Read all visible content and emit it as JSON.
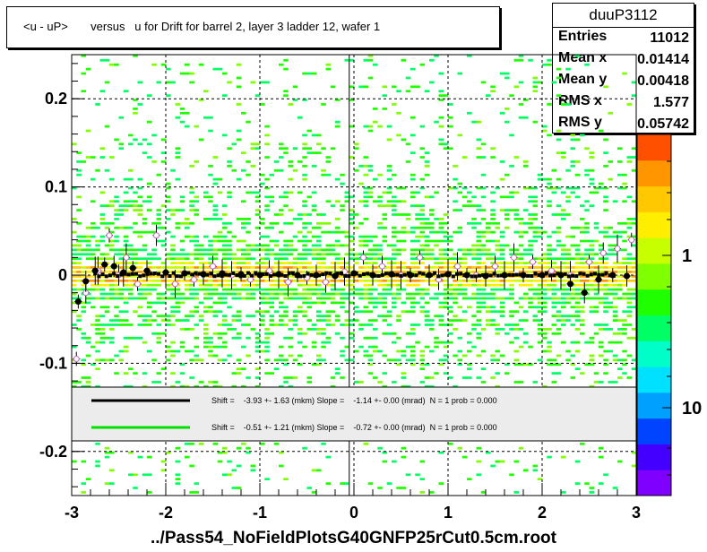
{
  "title": "<u - uP>       versus   u for Drift for barrel 2, layer 3 ladder 12, wafer 1",
  "stats": {
    "name": "duuP3112",
    "rows": [
      {
        "key": "Entries",
        "value": "11012"
      },
      {
        "key": "Mean x",
        "value": "0.01414"
      },
      {
        "key": "Mean y",
        "value": "0.00418"
      },
      {
        "key": "RMS x",
        "value": "1.577"
      },
      {
        "key": "RMS y",
        "value": "0.05742"
      }
    ]
  },
  "file_label": "../Pass54_NoFieldPlotsG40GNFP25rCut0.5cm.root",
  "chart_data": {
    "type": "heatmap",
    "x_ticks": [
      "-3",
      "-2",
      "-1",
      "0",
      "1",
      "2",
      "3"
    ],
    "y_ticks": [
      "-0.2",
      "-0.1",
      "0",
      "0.1",
      "0.2"
    ],
    "xlim": [
      -3,
      3
    ],
    "ylim": [
      -0.25,
      0.25
    ],
    "grid": true,
    "log_z": true,
    "z_ticks": [
      "1",
      "10"
    ],
    "palette": [
      "#7f00ff",
      "#4400ff",
      "#0044ff",
      "#00a0ff",
      "#00e0ff",
      "#00ffc8",
      "#00ff64",
      "#20ff00",
      "#7fff00",
      "#c8ff00",
      "#ffee00",
      "#ffc800",
      "#ff9600",
      "#ff5000"
    ],
    "legend": {
      "placement": "bottom-center",
      "entries": [
        {
          "color": "#000000",
          "text": "Shift =    -3.93 +- 1.63 (mkm) Slope =    -1.14 +- 0.00 (mrad)  N = 1 prob = 0.000"
        },
        {
          "color": "#00e000",
          "text": "Shift =    -0.51 +- 1.21 (mkm) Slope =    -0.72 +- 0.00 (mrad)  N = 1 prob = 0.000"
        }
      ]
    },
    "profile_black": {
      "x": [
        -2.93,
        -2.85,
        -2.75,
        -2.65,
        -2.55,
        -2.45,
        -2.35,
        -2.2,
        -2.0,
        -1.8,
        -1.6,
        -1.4,
        -1.2,
        -1.0,
        -0.8,
        -0.6,
        -0.4,
        -0.2,
        0.0,
        0.2,
        0.4,
        0.6,
        0.8,
        1.0,
        1.2,
        1.4,
        1.6,
        1.8,
        2.0,
        2.2,
        2.3,
        2.45,
        2.6,
        2.75,
        2.9
      ],
      "y": [
        -0.03,
        -0.007,
        0.005,
        0.012,
        0.01,
        0.003,
        0.008,
        0.005,
        0.003,
        0.002,
        0.001,
        0.002,
        0.001,
        0.0,
        0.001,
        0.0,
        0.0,
        -0.001,
        0.002,
        0.0,
        0.001,
        0.0,
        0.0,
        0.001,
        0.0,
        -0.001,
        0.0,
        0.0,
        0.0,
        0.0,
        -0.01,
        -0.02,
        -0.005,
        0.0,
        -0.001
      ]
    },
    "profile_green": {
      "x": [
        -2.95,
        -2.85,
        -2.72,
        -2.6,
        -2.5,
        -2.42,
        -2.3,
        -2.1,
        -1.9,
        -1.7,
        -1.5,
        -1.3,
        -1.1,
        -0.9,
        -0.7,
        -0.5,
        -0.3,
        -0.1,
        0.1,
        0.3,
        0.5,
        0.7,
        0.9,
        1.1,
        1.3,
        1.5,
        1.7,
        1.9,
        2.1,
        2.3,
        2.5,
        2.65,
        2.8,
        2.95
      ],
      "y": [
        -0.095,
        -0.02,
        0.005,
        0.045,
        0.0,
        0.02,
        -0.01,
        0.045,
        -0.01,
        -0.005,
        0.01,
        0.0,
        -0.005,
        0.005,
        -0.008,
        -0.003,
        -0.008,
        0.004,
        0.02,
        0.01,
        0.0,
        0.02,
        -0.005,
        0.01,
        0.0,
        0.01,
        0.02,
        0.015,
        0.005,
        0.0,
        0.015,
        0.025,
        0.03,
        0.04
      ]
    }
  }
}
